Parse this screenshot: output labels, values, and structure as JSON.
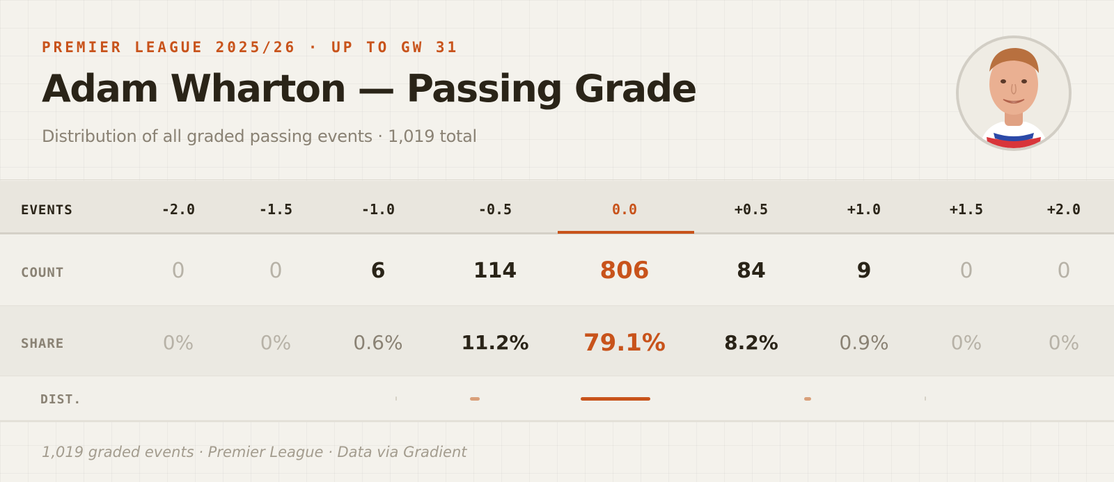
{
  "header": {
    "kicker": "PREMIER LEAGUE 2025/26 · UP TO GW 31",
    "title": "Adam Wharton — Passing Grade",
    "subtitle": "Distribution of all graded passing events · 1,019 total"
  },
  "row_labels": {
    "events": "EVENTS",
    "count": "COUNT",
    "share": "SHARE",
    "dist": "DIST."
  },
  "colors": {
    "accent": "#c8531b",
    "accent_light": "#d9a07a",
    "text_dark": "#2a2418",
    "text_muted": "#8a8274",
    "text_zero": "#b7b2a7",
    "background": "#f4f2ec"
  },
  "chart_data": {
    "type": "table",
    "title": "Adam Wharton — Passing Grade",
    "highlight_grade": "0.0",
    "grades": [
      "-2.0",
      "-1.5",
      "-1.0",
      "-0.5",
      "0.0",
      "+0.5",
      "+1.0",
      "+1.5",
      "+2.0"
    ],
    "count_display": [
      "0",
      "0",
      "6",
      "114",
      "806",
      "84",
      "9",
      "0",
      "0"
    ],
    "counts": [
      0,
      0,
      6,
      114,
      806,
      84,
      9,
      0,
      0
    ],
    "share_display": [
      "0%",
      "0%",
      "0.6%",
      "11.2%",
      "79.1%",
      "8.2%",
      "0.9%",
      "0%",
      "0%"
    ],
    "shares": [
      0,
      0,
      0.6,
      11.2,
      79.1,
      8.2,
      0.9,
      0,
      0
    ],
    "total": 1019
  },
  "footer": {
    "note": "1,019 graded events · Premier League · Data via Gradient"
  },
  "avatar": {
    "icon": "player-headshot-icon"
  }
}
